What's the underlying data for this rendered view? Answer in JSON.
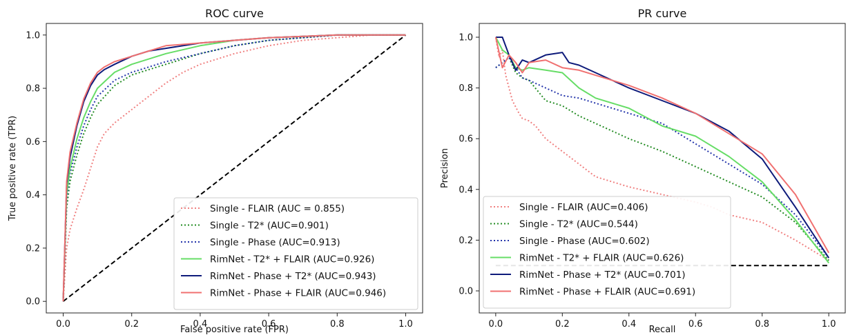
{
  "chart_data": [
    {
      "type": "line",
      "title": "ROC curve",
      "xlabel": "False positive rate (FPR)",
      "ylabel": "True positive rate (TPR)",
      "xlim": [
        0,
        1
      ],
      "ylim": [
        0,
        1
      ],
      "xticks": [
        "0.0",
        "0.2",
        "0.4",
        "0.6",
        "0.8",
        "1.0"
      ],
      "yticks": [
        "0.0",
        "0.2",
        "0.4",
        "0.6",
        "0.8",
        "1.0"
      ],
      "grid": false,
      "legend_position": "lower-right",
      "reference_line": {
        "style": "dashed",
        "color": "#000000",
        "x": [
          0,
          1
        ],
        "y": [
          0,
          1
        ]
      },
      "series": [
        {
          "name": "Single - FLAIR (AUC = 0.855)",
          "color": "#f08080",
          "style": "dotted",
          "x": [
            0,
            0.01,
            0.02,
            0.04,
            0.06,
            0.08,
            0.1,
            0.12,
            0.15,
            0.2,
            0.25,
            0.3,
            0.35,
            0.4,
            0.5,
            0.6,
            0.7,
            0.8,
            0.9,
            1.0
          ],
          "y": [
            0,
            0.2,
            0.27,
            0.35,
            0.42,
            0.5,
            0.58,
            0.63,
            0.67,
            0.72,
            0.77,
            0.82,
            0.86,
            0.89,
            0.93,
            0.96,
            0.98,
            0.99,
            1.0,
            1.0
          ]
        },
        {
          "name": "Single - T2* (AUC=0.901)",
          "color": "#228b22",
          "style": "dotted",
          "x": [
            0,
            0.01,
            0.02,
            0.04,
            0.06,
            0.08,
            0.1,
            0.15,
            0.2,
            0.25,
            0.3,
            0.4,
            0.5,
            0.6,
            0.7,
            0.8,
            0.9,
            1.0
          ],
          "y": [
            0,
            0.35,
            0.45,
            0.55,
            0.63,
            0.69,
            0.74,
            0.81,
            0.85,
            0.87,
            0.89,
            0.93,
            0.96,
            0.98,
            0.99,
            1.0,
            1.0,
            1.0
          ]
        },
        {
          "name": "Single - Phase (AUC=0.913)",
          "color": "#2233aa",
          "style": "dotted",
          "x": [
            0,
            0.01,
            0.02,
            0.04,
            0.06,
            0.08,
            0.1,
            0.15,
            0.2,
            0.25,
            0.3,
            0.4,
            0.5,
            0.6,
            0.7,
            0.8,
            0.9,
            1.0
          ],
          "y": [
            0,
            0.38,
            0.48,
            0.58,
            0.66,
            0.72,
            0.77,
            0.83,
            0.86,
            0.88,
            0.9,
            0.93,
            0.96,
            0.98,
            0.99,
            1.0,
            1.0,
            1.0
          ]
        },
        {
          "name": "RimNet - T2* + FLAIR (AUC=0.926)",
          "color": "#66dd66",
          "style": "solid",
          "x": [
            0,
            0.01,
            0.02,
            0.04,
            0.06,
            0.08,
            0.1,
            0.15,
            0.2,
            0.25,
            0.3,
            0.4,
            0.5,
            0.6,
            0.7,
            0.8,
            0.9,
            1.0
          ],
          "y": [
            0,
            0.4,
            0.5,
            0.61,
            0.69,
            0.75,
            0.8,
            0.86,
            0.89,
            0.91,
            0.93,
            0.96,
            0.98,
            0.99,
            0.995,
            1.0,
            1.0,
            1.0
          ]
        },
        {
          "name": "RimNet - Phase + T2* (AUC=0.943)",
          "color": "#0d1a7a",
          "style": "solid",
          "x": [
            0,
            0.01,
            0.02,
            0.04,
            0.06,
            0.08,
            0.1,
            0.12,
            0.15,
            0.2,
            0.25,
            0.3,
            0.4,
            0.5,
            0.6,
            0.7,
            0.8,
            0.9,
            1.0
          ],
          "y": [
            0,
            0.44,
            0.54,
            0.66,
            0.75,
            0.81,
            0.85,
            0.87,
            0.89,
            0.92,
            0.94,
            0.95,
            0.97,
            0.98,
            0.99,
            0.995,
            1.0,
            1.0,
            1.0
          ]
        },
        {
          "name": "RimNet - Phase + FLAIR (AUC=0.946)",
          "color": "#f07070",
          "style": "solid",
          "x": [
            0,
            0.01,
            0.02,
            0.04,
            0.06,
            0.08,
            0.1,
            0.12,
            0.15,
            0.2,
            0.25,
            0.3,
            0.4,
            0.5,
            0.6,
            0.7,
            0.8,
            0.9,
            1.0
          ],
          "y": [
            0,
            0.45,
            0.56,
            0.67,
            0.76,
            0.82,
            0.86,
            0.88,
            0.9,
            0.92,
            0.94,
            0.96,
            0.97,
            0.98,
            0.99,
            0.995,
            1.0,
            1.0,
            1.0
          ]
        }
      ]
    },
    {
      "type": "line",
      "title": "PR curve",
      "xlabel": "Recall",
      "ylabel": "Precision",
      "xlim": [
        0,
        1
      ],
      "ylim": [
        0,
        1.05
      ],
      "xticks": [
        "0.0",
        "0.2",
        "0.4",
        "0.6",
        "0.8",
        "1.0"
      ],
      "yticks": [
        "0.0",
        "0.2",
        "0.4",
        "0.6",
        "0.8",
        "1.0"
      ],
      "grid": false,
      "legend_position": "lower-left",
      "reference_line": {
        "style": "dashed",
        "color": "#000000",
        "x": [
          0,
          1
        ],
        "y": [
          0.1,
          0.1
        ]
      },
      "series": [
        {
          "name": "Single - FLAIR (AUC=0.406)",
          "color": "#f08080",
          "style": "dotted",
          "x": [
            0,
            0.01,
            0.02,
            0.03,
            0.05,
            0.07,
            0.08,
            0.1,
            0.12,
            0.15,
            0.2,
            0.25,
            0.3,
            0.35,
            0.4,
            0.5,
            0.6,
            0.65,
            0.7,
            0.8,
            0.9,
            1.0
          ],
          "y": [
            1.0,
            0.92,
            0.95,
            0.85,
            0.75,
            0.7,
            0.68,
            0.67,
            0.65,
            0.6,
            0.55,
            0.5,
            0.45,
            0.43,
            0.41,
            0.38,
            0.35,
            0.33,
            0.3,
            0.27,
            0.2,
            0.12
          ]
        },
        {
          "name": "Single - T2* (AUC=0.544)",
          "color": "#228b22",
          "style": "dotted",
          "x": [
            0,
            0.02,
            0.04,
            0.06,
            0.08,
            0.1,
            0.15,
            0.2,
            0.25,
            0.3,
            0.4,
            0.5,
            0.6,
            0.7,
            0.8,
            0.9,
            1.0
          ],
          "y": [
            0.88,
            0.9,
            0.92,
            0.86,
            0.84,
            0.83,
            0.75,
            0.73,
            0.69,
            0.66,
            0.6,
            0.55,
            0.49,
            0.43,
            0.37,
            0.27,
            0.12
          ]
        },
        {
          "name": "Single - Phase (AUC=0.602)",
          "color": "#2233aa",
          "style": "dotted",
          "x": [
            0,
            0.02,
            0.04,
            0.06,
            0.08,
            0.1,
            0.15,
            0.2,
            0.25,
            0.3,
            0.4,
            0.5,
            0.6,
            0.7,
            0.8,
            0.9,
            1.0
          ],
          "y": [
            0.88,
            0.9,
            0.92,
            0.88,
            0.84,
            0.83,
            0.8,
            0.77,
            0.76,
            0.74,
            0.7,
            0.66,
            0.58,
            0.5,
            0.42,
            0.3,
            0.13
          ]
        },
        {
          "name": "RimNet - T2* + FLAIR (AUC=0.626)",
          "color": "#66dd66",
          "style": "solid",
          "x": [
            0,
            0.02,
            0.04,
            0.06,
            0.08,
            0.1,
            0.15,
            0.2,
            0.25,
            0.3,
            0.4,
            0.5,
            0.6,
            0.7,
            0.8,
            0.9,
            1.0
          ],
          "y": [
            1.0,
            0.95,
            0.93,
            0.88,
            0.87,
            0.88,
            0.87,
            0.86,
            0.8,
            0.76,
            0.72,
            0.65,
            0.61,
            0.53,
            0.43,
            0.28,
            0.11
          ]
        },
        {
          "name": "RimNet - Phase + T2* (AUC=0.701)",
          "color": "#0d1a7a",
          "style": "solid",
          "x": [
            0,
            0.02,
            0.04,
            0.06,
            0.08,
            0.1,
            0.15,
            0.2,
            0.22,
            0.25,
            0.3,
            0.4,
            0.5,
            0.6,
            0.7,
            0.8,
            0.9,
            1.0
          ],
          "y": [
            1.0,
            1.0,
            0.93,
            0.87,
            0.91,
            0.9,
            0.93,
            0.94,
            0.9,
            0.89,
            0.86,
            0.8,
            0.75,
            0.7,
            0.63,
            0.52,
            0.33,
            0.13
          ]
        },
        {
          "name": "RimNet - Phase + FLAIR (AUC=0.691)",
          "color": "#f07070",
          "style": "solid",
          "x": [
            0,
            0.02,
            0.04,
            0.06,
            0.08,
            0.1,
            0.15,
            0.2,
            0.25,
            0.3,
            0.4,
            0.5,
            0.6,
            0.7,
            0.8,
            0.9,
            1.0
          ],
          "y": [
            1.0,
            0.88,
            0.93,
            0.9,
            0.86,
            0.9,
            0.91,
            0.88,
            0.87,
            0.85,
            0.81,
            0.76,
            0.7,
            0.62,
            0.54,
            0.38,
            0.15
          ]
        }
      ]
    }
  ]
}
